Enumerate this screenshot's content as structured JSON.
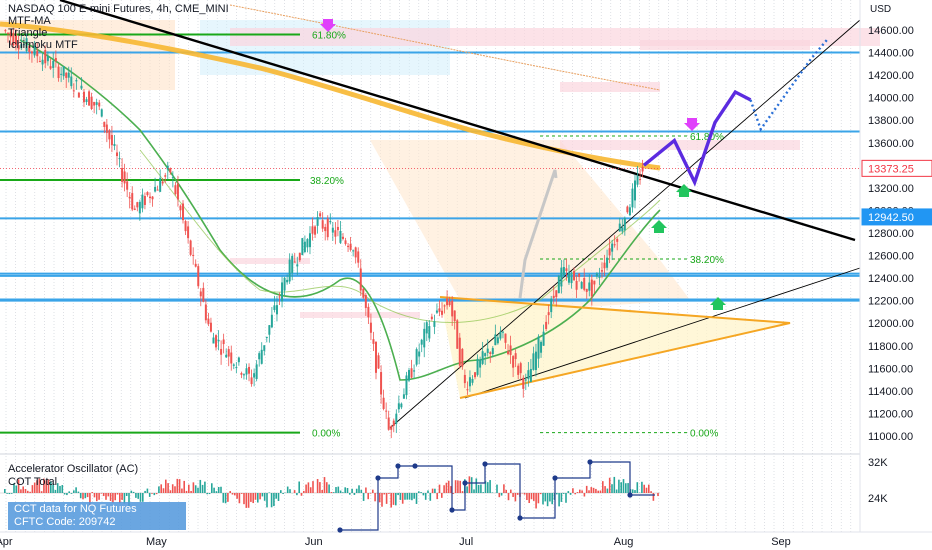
{
  "header": {
    "symbol": "NASDAQ 100 E-mini Futures, 4h, CME_MINI",
    "indicators": [
      "MTF-MA",
      "Triangle",
      "Ichimoku MTF"
    ],
    "currency": "USD"
  },
  "oscillator": {
    "labels": [
      "Accelerator Oscillator (AC)",
      "COT Total"
    ],
    "cot_lines": [
      "CCT data for NQ Futures",
      "CFTC Code: 209742"
    ],
    "axis": [
      "32K",
      "24K"
    ]
  },
  "colors": {
    "candle_up": "#26a69a",
    "candle_down": "#ef5350",
    "ma_orange": "#f7b731",
    "ma_green": "#4caf50",
    "fib_green": "#19a819",
    "hline_blue": "#3aa4e8",
    "projection_purple": "#5b2be0",
    "projection_blue": "#2a6fd6",
    "triangle_orange": "#f5a623",
    "price_tag_red": "#f23645",
    "price_tag_blue": "#2196f3",
    "fib_magenta": "#e040fb"
  },
  "chart_data": {
    "type": "line",
    "title": "NASDAQ 100 E-mini Futures, 4h, CME_MINI",
    "x_axis": {
      "tick_labels": [
        "Apr",
        "May",
        "Jun",
        "Jul",
        "Aug",
        "Sep"
      ]
    },
    "y_axis": {
      "unit": "USD",
      "range": [
        10900,
        14800
      ],
      "tick_labels": [
        "14600.00",
        "14400.00",
        "14200.00",
        "14000.00",
        "13800.00",
        "13600.00",
        "13400.00",
        "13200.00",
        "13000.00",
        "12800.00",
        "12600.00",
        "12400.00",
        "12200.00",
        "12000.00",
        "11800.00",
        "11600.00",
        "11400.00",
        "11200.00",
        "11000.00"
      ]
    },
    "price_path_x": [
      "Apr",
      "May",
      "Jun",
      "Jul",
      "Aug"
    ],
    "price_path": [
      {
        "x": "2022-04-01",
        "y": 14600
      },
      {
        "x": "2022-04-12",
        "y": 14250
      },
      {
        "x": "2022-04-20",
        "y": 13900
      },
      {
        "x": "2022-04-27",
        "y": 13000
      },
      {
        "x": "2022-05-04",
        "y": 13350
      },
      {
        "x": "2022-05-12",
        "y": 11900
      },
      {
        "x": "2022-05-20",
        "y": 11500
      },
      {
        "x": "2022-05-27",
        "y": 12450
      },
      {
        "x": "2022-06-02",
        "y": 12900
      },
      {
        "x": "2022-06-09",
        "y": 12700
      },
      {
        "x": "2022-06-16",
        "y": 11050
      },
      {
        "x": "2022-06-24",
        "y": 12000
      },
      {
        "x": "2022-06-28",
        "y": 12200
      },
      {
        "x": "2022-07-01",
        "y": 11450
      },
      {
        "x": "2022-07-08",
        "y": 11900
      },
      {
        "x": "2022-07-13",
        "y": 11450
      },
      {
        "x": "2022-07-20",
        "y": 12450
      },
      {
        "x": "2022-07-26",
        "y": 12300
      },
      {
        "x": "2022-08-01",
        "y": 12900
      },
      {
        "x": "2022-08-05",
        "y": 13373
      }
    ],
    "series": [
      {
        "name": "MTF-MA"
      },
      {
        "name": "Triangle"
      },
      {
        "name": "Ichimoku MTF"
      }
    ],
    "horizontal_levels": [
      {
        "label": "61.80%",
        "y": 14560
      },
      {
        "label": "38.20%",
        "y": 13270
      },
      {
        "label": "0.00%",
        "y": 11030
      },
      {
        "label": "61.80%",
        "y": 13660
      },
      {
        "label": "38.20%",
        "y": 12570
      },
      {
        "label": "0.00%",
        "y": 11030
      }
    ],
    "blue_levels": [
      14400,
      13700,
      12440,
      12420,
      12210,
      12200,
      12930
    ],
    "price_tags": [
      {
        "label": "13373.25",
        "y": 13373.25
      },
      {
        "label": "12942.50",
        "y": 12942.5
      }
    ],
    "projection": [
      13400,
      13620,
      13250,
      13780,
      14050,
      13980
    ],
    "projection_extension": [
      13980,
      13720,
      14350,
      14510
    ],
    "grid": true,
    "legend": "top-left"
  }
}
